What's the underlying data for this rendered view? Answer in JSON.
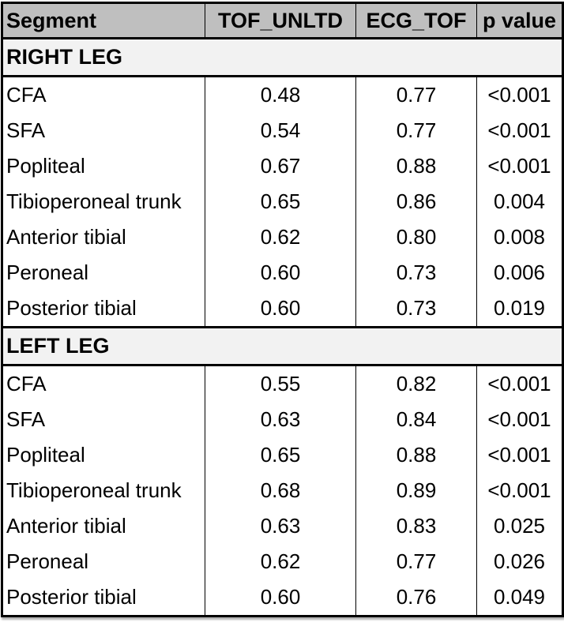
{
  "table": {
    "columns": [
      "Segment",
      "TOF_UNLTD",
      "ECG_TOF",
      "p value"
    ],
    "sections": [
      {
        "label": "RIGHT LEG",
        "rows": [
          {
            "segment": "CFA",
            "tof_unltd": "0.48",
            "ecg_tof": "0.77",
            "p_value": "<0.001"
          },
          {
            "segment": "SFA",
            "tof_unltd": "0.54",
            "ecg_tof": "0.77",
            "p_value": "<0.001"
          },
          {
            "segment": "Popliteal",
            "tof_unltd": "0.67",
            "ecg_tof": "0.88",
            "p_value": "<0.001"
          },
          {
            "segment": "Tibioperoneal trunk",
            "tof_unltd": "0.65",
            "ecg_tof": "0.86",
            "p_value": "0.004"
          },
          {
            "segment": "Anterior tibial",
            "tof_unltd": "0.62",
            "ecg_tof": "0.80",
            "p_value": "0.008"
          },
          {
            "segment": "Peroneal",
            "tof_unltd": "0.60",
            "ecg_tof": "0.73",
            "p_value": "0.006"
          },
          {
            "segment": "Posterior tibial",
            "tof_unltd": "0.60",
            "ecg_tof": "0.73",
            "p_value": "0.019"
          }
        ]
      },
      {
        "label": "LEFT LEG",
        "rows": [
          {
            "segment": "CFA",
            "tof_unltd": "0.55",
            "ecg_tof": "0.82",
            "p_value": "<0.001"
          },
          {
            "segment": "SFA",
            "tof_unltd": "0.63",
            "ecg_tof": "0.84",
            "p_value": "<0.001"
          },
          {
            "segment": "Popliteal",
            "tof_unltd": "0.65",
            "ecg_tof": "0.88",
            "p_value": "<0.001"
          },
          {
            "segment": "Tibioperoneal trunk",
            "tof_unltd": "0.68",
            "ecg_tof": "0.89",
            "p_value": "<0.001"
          },
          {
            "segment": "Anterior tibial",
            "tof_unltd": "0.63",
            "ecg_tof": "0.83",
            "p_value": "0.025"
          },
          {
            "segment": "Peroneal",
            "tof_unltd": "0.62",
            "ecg_tof": "0.77",
            "p_value": "0.026"
          },
          {
            "segment": "Posterior tibial",
            "tof_unltd": "0.60",
            "ecg_tof": "0.76",
            "p_value": "0.049"
          }
        ]
      }
    ]
  },
  "colors": {
    "header_bg": "#bfbfbf",
    "section_bg": "#f2f2f2",
    "border": "#000000",
    "text": "#000000",
    "row_bg": "#ffffff"
  }
}
